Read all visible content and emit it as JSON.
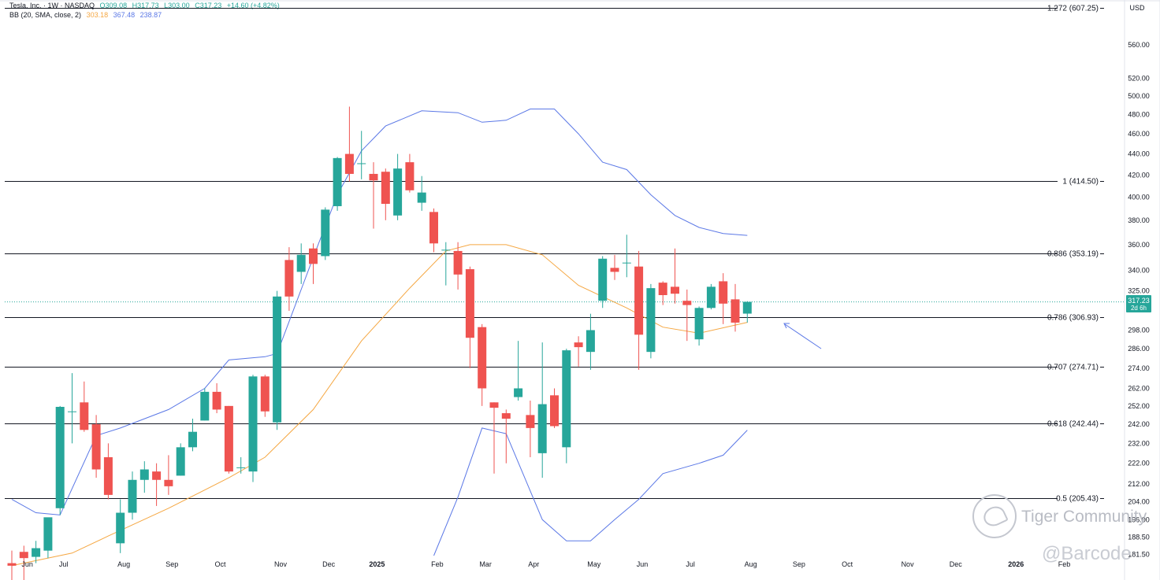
{
  "header": {
    "symbol": "Tesla, Inc. · 1W · NASDAQ",
    "open": "O309.08",
    "high": "H317.73",
    "low": "L303.00",
    "close": "C317.23",
    "change": "+14.60 (+4.82%)",
    "bb_name": "BB (20, SMA, close, 2)",
    "bb_basis": "303.18",
    "bb_upper": "367.48",
    "bb_lower": "238.87"
  },
  "currency": "USD",
  "last_price": {
    "value": "317.23",
    "countdown": "2d 6h"
  },
  "watermark": {
    "brand": "Tiger Community",
    "author": "@Barcode"
  },
  "colors": {
    "up": "#26a69a",
    "down": "#ef5350",
    "bb_basis": "#f5a742",
    "bb_band": "#5b78e6",
    "fib_line": "#131722",
    "price_line": "#26a69a"
  },
  "chart_data": {
    "type": "candlestick",
    "price_scale": "log",
    "ylim": [
      181,
      612
    ],
    "x_tick_labels": [
      "Jun",
      "Jul",
      "Aug",
      "Sep",
      "Oct",
      "Nov",
      "Dec",
      "2025",
      "Feb",
      "Mar",
      "Apr",
      "May",
      "Jun",
      "Jul",
      "Aug",
      "Sep",
      "Oct",
      "Nov",
      "Dec",
      "2026",
      "Feb"
    ],
    "y_tick_labels": [
      560,
      520,
      500,
      480,
      460,
      440,
      420,
      400,
      380,
      360,
      340,
      325,
      298,
      286,
      274,
      262,
      252,
      242,
      232,
      222,
      212,
      204,
      196,
      188.5,
      181.5
    ],
    "fib_levels": [
      {
        "label": "1.272 (607.25)",
        "price": 607.25
      },
      {
        "label": "1 (414.50)",
        "price": 414.5
      },
      {
        "label": "0.886 (353.19)",
        "price": 353.19
      },
      {
        "label": "0.786 (306.93)",
        "price": 306.93
      },
      {
        "label": "0.707 (274.71)",
        "price": 274.71
      },
      {
        "label": "0.618 (242.44)",
        "price": 242.44
      },
      {
        "label": "0.5 (205.43)",
        "price": 205.43
      }
    ],
    "candles": [
      {
        "week": "2024-06-03",
        "o": 178.0,
        "h": 183.0,
        "l": 170.0,
        "c": 177.0
      },
      {
        "week": "2024-06-10",
        "o": 182.5,
        "h": 185.0,
        "l": 170.0,
        "c": 180.0
      },
      {
        "week": "2024-06-17",
        "o": 180.5,
        "h": 187.0,
        "l": 178.0,
        "c": 184.0
      },
      {
        "week": "2024-06-24",
        "o": 183.0,
        "h": 194.0,
        "l": 180.0,
        "c": 197.0
      },
      {
        "week": "2024-07-01",
        "o": 201.0,
        "h": 252.0,
        "l": 198.0,
        "c": 251.5
      },
      {
        "week": "2024-07-08",
        "o": 249.0,
        "h": 271.0,
        "l": 232.0,
        "c": 249.0
      },
      {
        "week": "2024-07-15",
        "o": 254.0,
        "h": 266.0,
        "l": 238.0,
        "c": 239.0
      },
      {
        "week": "2024-07-22",
        "o": 242.0,
        "h": 247.0,
        "l": 215.0,
        "c": 219.0
      },
      {
        "week": "2024-07-29",
        "o": 225.0,
        "h": 232.0,
        "l": 205.0,
        "c": 207.0
      },
      {
        "week": "2024-08-05",
        "o": 186.0,
        "h": 205.0,
        "l": 182.0,
        "c": 199.0
      },
      {
        "week": "2024-08-12",
        "o": 199.0,
        "h": 218.0,
        "l": 196.0,
        "c": 214.0
      },
      {
        "week": "2024-08-19",
        "o": 214.0,
        "h": 223.0,
        "l": 208.0,
        "c": 219.0
      },
      {
        "week": "2024-08-26",
        "o": 218.0,
        "h": 222.0,
        "l": 202.0,
        "c": 214.0
      },
      {
        "week": "2024-09-02",
        "o": 214.0,
        "h": 226.0,
        "l": 207.0,
        "c": 211.0
      },
      {
        "week": "2024-09-09",
        "o": 216.0,
        "h": 232.0,
        "l": 216.0,
        "c": 230.0
      },
      {
        "week": "2024-09-16",
        "o": 230.0,
        "h": 245.0,
        "l": 228.0,
        "c": 238.0
      },
      {
        "week": "2024-09-23",
        "o": 244.0,
        "h": 262.0,
        "l": 244.0,
        "c": 260.0
      },
      {
        "week": "2024-09-30",
        "o": 260.0,
        "h": 265.0,
        "l": 248.0,
        "c": 250.0
      },
      {
        "week": "2024-10-07",
        "o": 252.0,
        "h": 252.0,
        "l": 217.0,
        "c": 218.0
      },
      {
        "week": "2024-10-14",
        "o": 220.0,
        "h": 225.0,
        "l": 217.0,
        "c": 220.0
      },
      {
        "week": "2024-10-21",
        "o": 218.0,
        "h": 270.0,
        "l": 213.0,
        "c": 269.0
      },
      {
        "week": "2024-10-28",
        "o": 269.0,
        "h": 270.0,
        "l": 246.0,
        "c": 249.0
      },
      {
        "week": "2024-11-04",
        "o": 243.0,
        "h": 325.0,
        "l": 239.0,
        "c": 321.0
      },
      {
        "week": "2024-11-11",
        "o": 348.0,
        "h": 358.0,
        "l": 311.0,
        "c": 321.0
      },
      {
        "week": "2024-11-18",
        "o": 339.0,
        "h": 361.0,
        "l": 330.0,
        "c": 352.0
      },
      {
        "week": "2024-11-25",
        "o": 357.0,
        "h": 361.0,
        "l": 330.0,
        "c": 345.0
      },
      {
        "week": "2024-12-02",
        "o": 351.0,
        "h": 391.0,
        "l": 348.0,
        "c": 389.0
      },
      {
        "week": "2024-12-09",
        "o": 392.0,
        "h": 437.0,
        "l": 388.0,
        "c": 436.0
      },
      {
        "week": "2024-12-16",
        "o": 440.0,
        "h": 488.5,
        "l": 414.0,
        "c": 421.0
      },
      {
        "week": "2024-12-23",
        "o": 431.0,
        "h": 463.0,
        "l": 416.0,
        "c": 431.0
      },
      {
        "week": "2024-12-30",
        "o": 421.0,
        "h": 432.0,
        "l": 373.0,
        "c": 415.0
      },
      {
        "week": "2025-01-06",
        "o": 423.0,
        "h": 426.0,
        "l": 380.0,
        "c": 394.0
      },
      {
        "week": "2025-01-13",
        "o": 384.0,
        "h": 440.0,
        "l": 380.0,
        "c": 426.0
      },
      {
        "week": "2025-01-20",
        "o": 432.0,
        "h": 440.0,
        "l": 404.0,
        "c": 406.0
      },
      {
        "week": "2025-01-27",
        "o": 395.0,
        "h": 419.0,
        "l": 388.0,
        "c": 404.0
      },
      {
        "week": "2025-02-03",
        "o": 387.0,
        "h": 390.0,
        "l": 354.0,
        "c": 361.0
      },
      {
        "week": "2025-02-10",
        "o": 356.0,
        "h": 362.0,
        "l": 329.0,
        "c": 356.0
      },
      {
        "week": "2025-02-17",
        "o": 355.0,
        "h": 362.0,
        "l": 326.0,
        "c": 337.0
      },
      {
        "week": "2025-02-24",
        "o": 341.0,
        "h": 343.0,
        "l": 274.0,
        "c": 293.0
      },
      {
        "week": "2025-03-03",
        "o": 300.0,
        "h": 302.0,
        "l": 252.0,
        "c": 262.0
      },
      {
        "week": "2025-03-10",
        "o": 254.0,
        "h": 254.0,
        "l": 217.0,
        "c": 251.0
      },
      {
        "week": "2025-03-17",
        "o": 248.0,
        "h": 250.0,
        "l": 222.0,
        "c": 245.0
      },
      {
        "week": "2025-03-24",
        "o": 257.0,
        "h": 291.0,
        "l": 255.0,
        "c": 262.0
      },
      {
        "week": "2025-03-31",
        "o": 247.0,
        "h": 255.0,
        "l": 225.0,
        "c": 240.0
      },
      {
        "week": "2025-04-07",
        "o": 227.0,
        "h": 290.0,
        "l": 215.0,
        "c": 253.0
      },
      {
        "week": "2025-04-14",
        "o": 258.0,
        "h": 262.0,
        "l": 240.0,
        "c": 241.0
      },
      {
        "week": "2025-04-21",
        "o": 230.0,
        "h": 286.0,
        "l": 222.0,
        "c": 285.0
      },
      {
        "week": "2025-04-28",
        "o": 290.0,
        "h": 294.0,
        "l": 275.0,
        "c": 287.0
      },
      {
        "week": "2025-05-05",
        "o": 284.0,
        "h": 309.0,
        "l": 273.0,
        "c": 298.0
      },
      {
        "week": "2025-05-12",
        "o": 318.0,
        "h": 351.0,
        "l": 313.0,
        "c": 349.0
      },
      {
        "week": "2025-05-19",
        "o": 342.0,
        "h": 352.0,
        "l": 333.0,
        "c": 339.0
      },
      {
        "week": "2025-05-26",
        "o": 346.0,
        "h": 368.0,
        "l": 335.0,
        "c": 346.0
      },
      {
        "week": "2025-06-02",
        "o": 343.0,
        "h": 355.0,
        "l": 273.0,
        "c": 295.0
      },
      {
        "week": "2025-06-09",
        "o": 284.0,
        "h": 330.0,
        "l": 280.0,
        "c": 327.0
      },
      {
        "week": "2025-06-16",
        "o": 331.0,
        "h": 332.0,
        "l": 315.0,
        "c": 322.0
      },
      {
        "week": "2025-06-23",
        "o": 328.0,
        "h": 357.0,
        "l": 316.0,
        "c": 323.0
      },
      {
        "week": "2025-06-30",
        "o": 318.0,
        "h": 326.0,
        "l": 291.0,
        "c": 315.0
      },
      {
        "week": "2025-07-07",
        "o": 292.0,
        "h": 314.0,
        "l": 288.0,
        "c": 313.0
      },
      {
        "week": "2025-07-14",
        "o": 313.0,
        "h": 330.0,
        "l": 312.0,
        "c": 328.0
      },
      {
        "week": "2025-07-21",
        "o": 332.0,
        "h": 338.0,
        "l": 302.0,
        "c": 316.0
      },
      {
        "week": "2025-07-28",
        "o": 319.0,
        "h": 330.0,
        "l": 297.0,
        "c": 303.0
      },
      {
        "week": "2025-08-04",
        "o": 309.08,
        "h": 317.73,
        "l": 303.0,
        "c": 317.23
      }
    ],
    "bollinger_bands": {
      "period": 20,
      "source": "close",
      "stddev": 2,
      "upper": [
        [
          "2024-06-03",
          205
        ],
        [
          "2024-06-17",
          199
        ],
        [
          "2024-07-01",
          198
        ],
        [
          "2024-07-22",
          236
        ],
        [
          "2024-08-05",
          240
        ],
        [
          "2024-09-02",
          250
        ],
        [
          "2024-09-23",
          262
        ],
        [
          "2024-10-07",
          279
        ],
        [
          "2024-10-28",
          281
        ],
        [
          "2024-11-04",
          283
        ],
        [
          "2024-11-25",
          350
        ],
        [
          "2024-12-09",
          402
        ],
        [
          "2024-12-23",
          443
        ],
        [
          "2025-01-06",
          468
        ],
        [
          "2025-01-27",
          484
        ],
        [
          "2025-02-17",
          482
        ],
        [
          "2025-03-03",
          472
        ],
        [
          "2025-03-17",
          474
        ],
        [
          "2025-03-31",
          486
        ],
        [
          "2025-04-14",
          486
        ],
        [
          "2025-04-28",
          460
        ],
        [
          "2025-05-12",
          432
        ],
        [
          "2025-05-26",
          425
        ],
        [
          "2025-06-09",
          402
        ],
        [
          "2025-06-23",
          384
        ],
        [
          "2025-07-07",
          374
        ],
        [
          "2025-07-21",
          369
        ],
        [
          "2025-08-04",
          367.48
        ]
      ],
      "basis": [
        [
          "2024-06-03",
          177
        ],
        [
          "2024-07-08",
          182
        ],
        [
          "2024-07-29",
          189
        ],
        [
          "2024-09-02",
          201
        ],
        [
          "2024-10-07",
          215
        ],
        [
          "2024-10-28",
          225
        ],
        [
          "2024-11-25",
          250
        ],
        [
          "2024-12-23",
          291
        ],
        [
          "2025-01-20",
          327
        ],
        [
          "2025-02-10",
          355
        ],
        [
          "2025-02-24",
          360
        ],
        [
          "2025-03-17",
          360
        ],
        [
          "2025-04-07",
          352
        ],
        [
          "2025-04-28",
          329
        ],
        [
          "2025-05-26",
          313
        ],
        [
          "2025-06-16",
          300
        ],
        [
          "2025-07-07",
          296
        ],
        [
          "2025-08-04",
          303.18
        ]
      ],
      "lower": [
        [
          "2025-02-03",
          181
        ],
        [
          "2025-02-17",
          206
        ],
        [
          "2025-03-03",
          240
        ],
        [
          "2025-03-17",
          237
        ],
        [
          "2025-04-07",
          196
        ],
        [
          "2025-04-21",
          187
        ],
        [
          "2025-05-05",
          187
        ],
        [
          "2025-05-19",
          196
        ],
        [
          "2025-06-02",
          205
        ],
        [
          "2025-06-16",
          217
        ],
        [
          "2025-07-07",
          222
        ],
        [
          "2025-07-21",
          226
        ],
        [
          "2025-08-04",
          238.87
        ]
      ]
    }
  }
}
